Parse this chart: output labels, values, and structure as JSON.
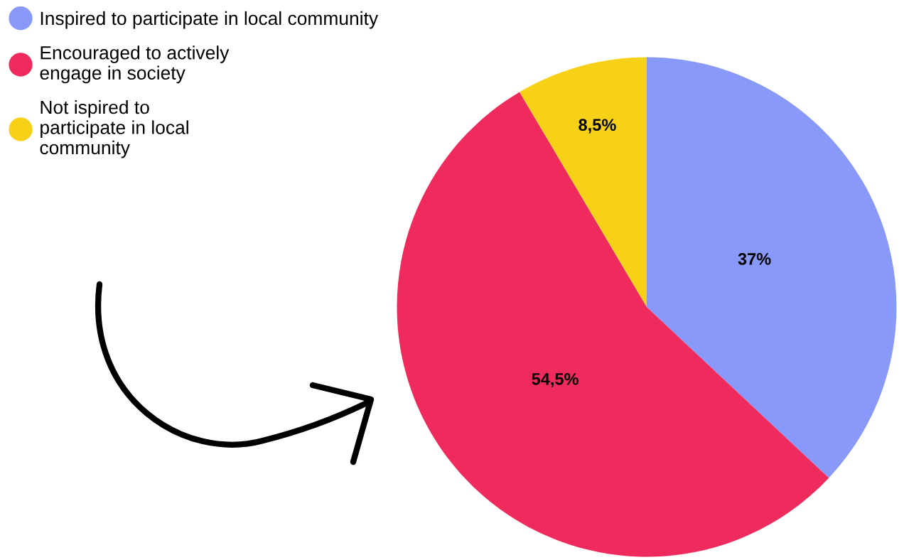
{
  "chart_data": {
    "type": "pie",
    "categories": [
      "Inspired to participate in local community",
      "Encouraged to actively\nengage in society",
      "Not ispired to\nparticipate in local\ncommunity"
    ],
    "values": [
      37,
      54.5,
      8.5
    ],
    "colors": [
      "#8899fa",
      "#ef2b5e",
      "#f7d117"
    ],
    "value_labels": [
      "37%",
      "54,5%",
      "8,5%"
    ],
    "legend": "top left"
  }
}
